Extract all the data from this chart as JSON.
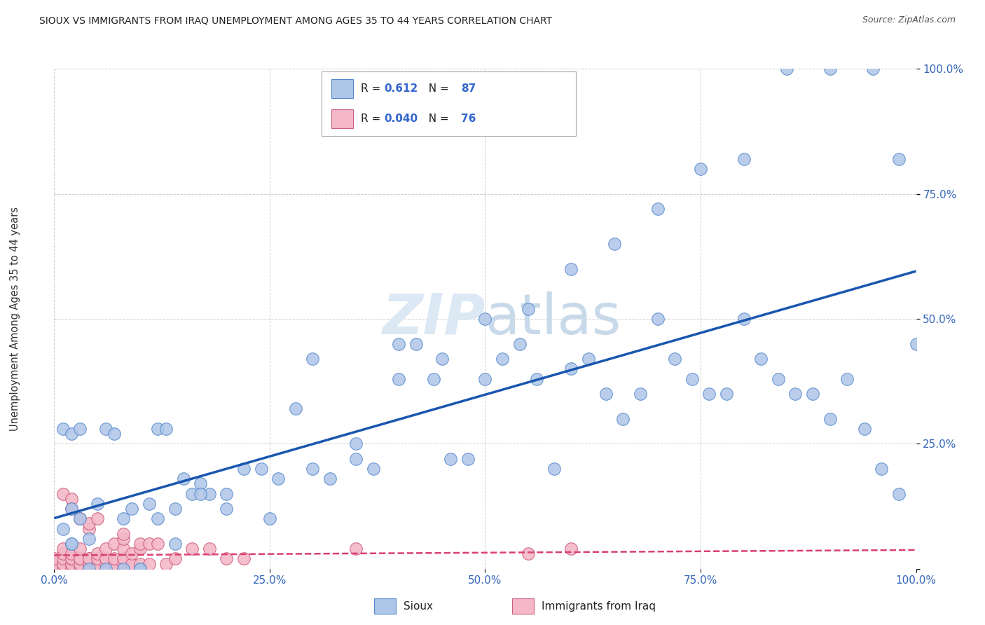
{
  "title": "SIOUX VS IMMIGRANTS FROM IRAQ UNEMPLOYMENT AMONG AGES 35 TO 44 YEARS CORRELATION CHART",
  "source": "Source: ZipAtlas.com",
  "ylabel": "Unemployment Among Ages 35 to 44 years",
  "xlim": [
    0,
    1.0
  ],
  "ylim": [
    0,
    1.0
  ],
  "xticks": [
    0,
    0.25,
    0.5,
    0.75,
    1.0
  ],
  "yticks": [
    0.0,
    0.25,
    0.5,
    0.75,
    1.0
  ],
  "xticklabels": [
    "0.0%",
    "25.0%",
    "50.0%",
    "75.0%",
    "100.0%"
  ],
  "yticklabels": [
    "",
    "25.0%",
    "50.0%",
    "75.0%",
    "100.0%"
  ],
  "sioux_R": 0.612,
  "sioux_N": 87,
  "iraq_R": 0.04,
  "iraq_N": 76,
  "sioux_color": "#aec6e8",
  "iraq_color": "#f4b8c8",
  "sioux_line_color": "#1a56b0",
  "iraq_line_color": "#d94070",
  "sioux_edge_color": "#5588cc",
  "iraq_edge_color": "#cc6080",
  "background_color": "#ffffff",
  "grid_color": "#cccccc",
  "watermark_color": "#d8e4f0",
  "sioux_x": [
    0.01,
    0.01,
    0.02,
    0.02,
    0.02,
    0.03,
    0.03,
    0.04,
    0.05,
    0.06,
    0.07,
    0.08,
    0.09,
    0.1,
    0.11,
    0.12,
    0.13,
    0.14,
    0.15,
    0.16,
    0.17,
    0.18,
    0.2,
    0.22,
    0.24,
    0.26,
    0.28,
    0.3,
    0.32,
    0.35,
    0.37,
    0.4,
    0.42,
    0.44,
    0.46,
    0.48,
    0.5,
    0.52,
    0.54,
    0.56,
    0.58,
    0.6,
    0.62,
    0.64,
    0.66,
    0.68,
    0.7,
    0.72,
    0.74,
    0.76,
    0.78,
    0.8,
    0.82,
    0.84,
    0.86,
    0.88,
    0.9,
    0.92,
    0.94,
    0.96,
    0.98,
    1.0,
    0.02,
    0.04,
    0.06,
    0.08,
    0.1,
    0.12,
    0.14,
    0.17,
    0.2,
    0.25,
    0.3,
    0.35,
    0.4,
    0.45,
    0.5,
    0.55,
    0.6,
    0.65,
    0.7,
    0.75,
    0.8,
    0.85,
    0.9,
    0.95,
    0.98
  ],
  "sioux_y": [
    0.28,
    0.08,
    0.05,
    0.12,
    0.27,
    0.1,
    0.28,
    0.06,
    0.13,
    0.28,
    0.27,
    0.1,
    0.12,
    0.0,
    0.13,
    0.28,
    0.28,
    0.12,
    0.18,
    0.15,
    0.17,
    0.15,
    0.12,
    0.2,
    0.2,
    0.18,
    0.32,
    0.42,
    0.18,
    0.22,
    0.2,
    0.38,
    0.45,
    0.38,
    0.22,
    0.22,
    0.38,
    0.42,
    0.45,
    0.38,
    0.2,
    0.4,
    0.42,
    0.35,
    0.3,
    0.35,
    0.5,
    0.42,
    0.38,
    0.35,
    0.35,
    0.5,
    0.42,
    0.38,
    0.35,
    0.35,
    0.3,
    0.38,
    0.28,
    0.2,
    0.15,
    0.45,
    0.05,
    0.0,
    0.0,
    0.0,
    0.0,
    0.1,
    0.05,
    0.15,
    0.15,
    0.1,
    0.2,
    0.25,
    0.45,
    0.42,
    0.5,
    0.52,
    0.6,
    0.65,
    0.72,
    0.8,
    0.82,
    1.0,
    1.0,
    1.0,
    0.82
  ],
  "iraq_x": [
    0.0,
    0.0,
    0.0,
    0.01,
    0.01,
    0.01,
    0.01,
    0.01,
    0.01,
    0.01,
    0.01,
    0.02,
    0.02,
    0.02,
    0.02,
    0.02,
    0.02,
    0.02,
    0.02,
    0.02,
    0.03,
    0.03,
    0.03,
    0.03,
    0.03,
    0.03,
    0.03,
    0.03,
    0.04,
    0.04,
    0.04,
    0.04,
    0.04,
    0.04,
    0.04,
    0.04,
    0.05,
    0.05,
    0.05,
    0.05,
    0.05,
    0.05,
    0.05,
    0.06,
    0.06,
    0.06,
    0.06,
    0.07,
    0.07,
    0.07,
    0.07,
    0.08,
    0.08,
    0.08,
    0.08,
    0.08,
    0.08,
    0.09,
    0.09,
    0.09,
    0.1,
    0.1,
    0.1,
    0.1,
    0.11,
    0.11,
    0.12,
    0.13,
    0.14,
    0.16,
    0.18,
    0.2,
    0.22,
    0.35,
    0.55,
    0.6
  ],
  "iraq_y": [
    0.0,
    0.01,
    0.02,
    0.0,
    0.0,
    0.01,
    0.01,
    0.02,
    0.03,
    0.04,
    0.15,
    0.0,
    0.0,
    0.01,
    0.01,
    0.02,
    0.02,
    0.03,
    0.14,
    0.12,
    0.0,
    0.0,
    0.01,
    0.01,
    0.02,
    0.02,
    0.04,
    0.1,
    0.0,
    0.0,
    0.01,
    0.01,
    0.02,
    0.02,
    0.08,
    0.09,
    0.0,
    0.0,
    0.01,
    0.01,
    0.02,
    0.03,
    0.1,
    0.0,
    0.01,
    0.02,
    0.04,
    0.0,
    0.01,
    0.02,
    0.05,
    0.0,
    0.01,
    0.02,
    0.04,
    0.06,
    0.07,
    0.0,
    0.01,
    0.03,
    0.0,
    0.01,
    0.04,
    0.05,
    0.01,
    0.05,
    0.05,
    0.01,
    0.02,
    0.04,
    0.04,
    0.02,
    0.02,
    0.04,
    0.03,
    0.04
  ]
}
